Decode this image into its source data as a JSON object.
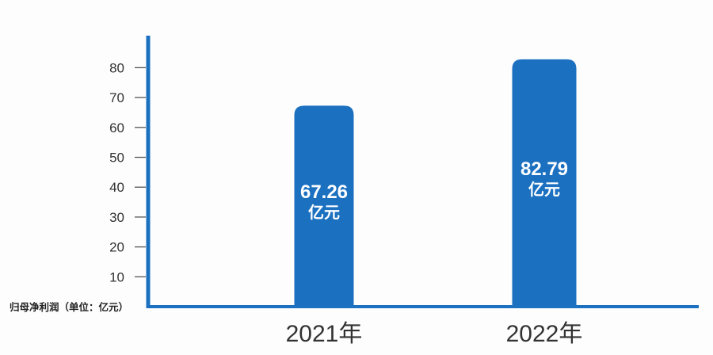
{
  "chart_data": {
    "type": "bar",
    "title": "",
    "xlabel": "",
    "ylabel": "归母净利润（单位：亿元）",
    "categories": [
      "2021年",
      "2022年"
    ],
    "values": [
      67.26,
      82.79
    ],
    "data_labels": [
      {
        "value": "67.26",
        "unit": "亿元"
      },
      {
        "value": "82.79",
        "unit": "亿元"
      }
    ],
    "yticks": [
      10,
      20,
      30,
      40,
      50,
      60,
      70,
      80
    ],
    "ylim": [
      0,
      90
    ],
    "grid": false,
    "legend": "none",
    "colors": {
      "bar": "#1b70c0",
      "axis": "#1b70c0",
      "tick": "#555555",
      "text": "#333333"
    }
  }
}
